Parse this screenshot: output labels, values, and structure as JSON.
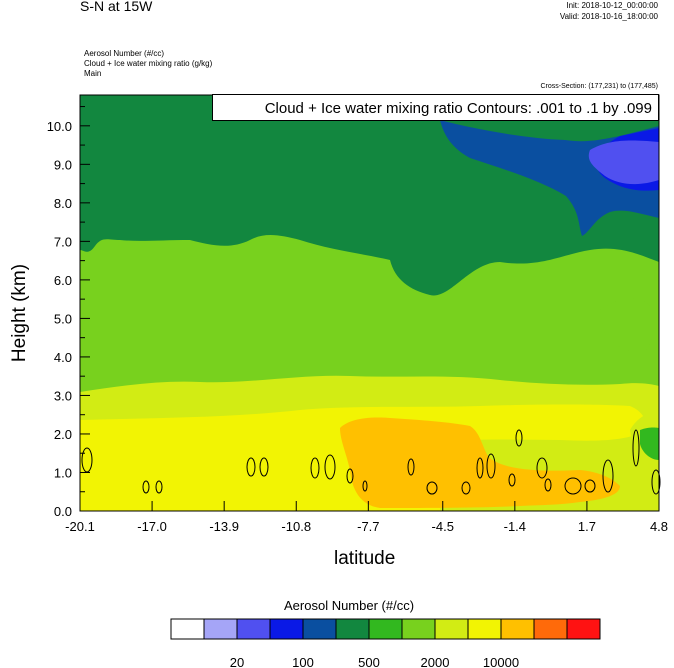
{
  "header": {
    "title": "S-N at 15W",
    "init": "Init: 2018-10-12_00:00:00",
    "valid": "Valid: 2018-10-16_18:00:00",
    "field_lines": [
      "Aerosol Number   (#/cc)",
      "Cloud + Ice water mixing ratio   (g/kg)",
      "Main"
    ],
    "cross_section": "Cross-Section: (177,231) to (177,485)"
  },
  "contour_label": "Cloud + Ice water mixing ratio Contours: .001 to .1 by .099",
  "chart_data": {
    "type": "heatmap",
    "title": "S-N at 15W",
    "xlabel": "latitude",
    "ylabel": "Height (km)",
    "xlim": [
      -20.1,
      4.8
    ],
    "ylim": [
      0.0,
      10.8
    ],
    "xticks": [
      "-20.1",
      "-17.0",
      "-13.9",
      "-10.8",
      "-7.7",
      "-4.5",
      "-1.4",
      "1.7",
      "4.8"
    ],
    "yticks": [
      "0.0",
      "1.0",
      "2.0",
      "3.0",
      "4.0",
      "5.0",
      "6.0",
      "7.0",
      "8.0",
      "9.0",
      "10.0"
    ],
    "legend": {
      "title": "Aerosol Number  (#/cc)",
      "colors": [
        "#ffffff",
        "#a5a5f7",
        "#5050f0",
        "#0a19e6",
        "#0a4fa0",
        "#12873f",
        "#32b81f",
        "#78d11e",
        "#d2ec14",
        "#f2f403",
        "#ffc000",
        "#ff6a0a",
        "#ff1212"
      ],
      "labels": [
        "20",
        "100",
        "500",
        "2000",
        "10000"
      ],
      "placement": "bottom"
    }
  }
}
